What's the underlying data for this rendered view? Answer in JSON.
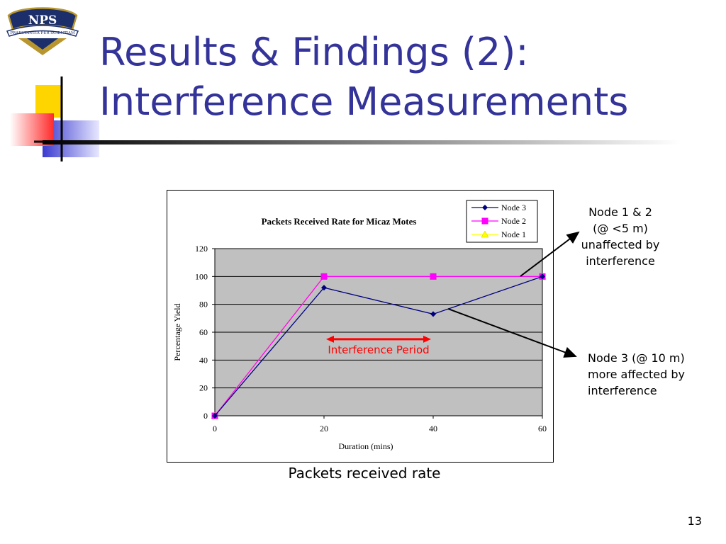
{
  "slide": {
    "title_line1": "Results & Findings (2):",
    "title_line2": "Interference Measurements",
    "caption": "Packets received rate",
    "page_number": "13"
  },
  "logo": {
    "name": "NPS emblem",
    "text": "NPS",
    "motto": "PRAESTANTIA PER SCIENTIAM"
  },
  "annotations": {
    "nodes12_lines": [
      "Node 1 & 2",
      "(@ <5 m)",
      "unaffected by",
      "interference"
    ],
    "node3_lines": [
      "Node 3 (@ 10 m)",
      "more affected by",
      "interference"
    ],
    "interference_label": "Interference Period"
  },
  "colors": {
    "title": "#333399",
    "plot_bg": "#c0c0c0",
    "node3": "#000080",
    "node2": "#ff00ff",
    "node1": "#ffff00",
    "interference": "#ff0000"
  },
  "chart_data": {
    "type": "line",
    "title": "Packets Received Rate for Micaz Motes",
    "xlabel": "Duration (mins)",
    "ylabel": "Percentage Yield",
    "x": [
      0,
      20,
      40,
      60
    ],
    "xlim": [
      0,
      60
    ],
    "ylim": [
      0,
      120
    ],
    "xticks": [
      0,
      20,
      40,
      60
    ],
    "yticks": [
      0,
      20,
      40,
      60,
      80,
      100,
      120
    ],
    "grid": true,
    "legend_position": "top-right",
    "series": [
      {
        "name": "Node 3",
        "values": [
          0,
          92,
          73,
          100
        ],
        "marker": "diamond"
      },
      {
        "name": "Node 2",
        "values": [
          0,
          100,
          100,
          100
        ],
        "marker": "square"
      },
      {
        "name": "Node 1",
        "values": [
          0,
          100,
          100,
          100
        ],
        "marker": "triangle"
      }
    ],
    "interference_period": [
      20,
      40
    ]
  }
}
